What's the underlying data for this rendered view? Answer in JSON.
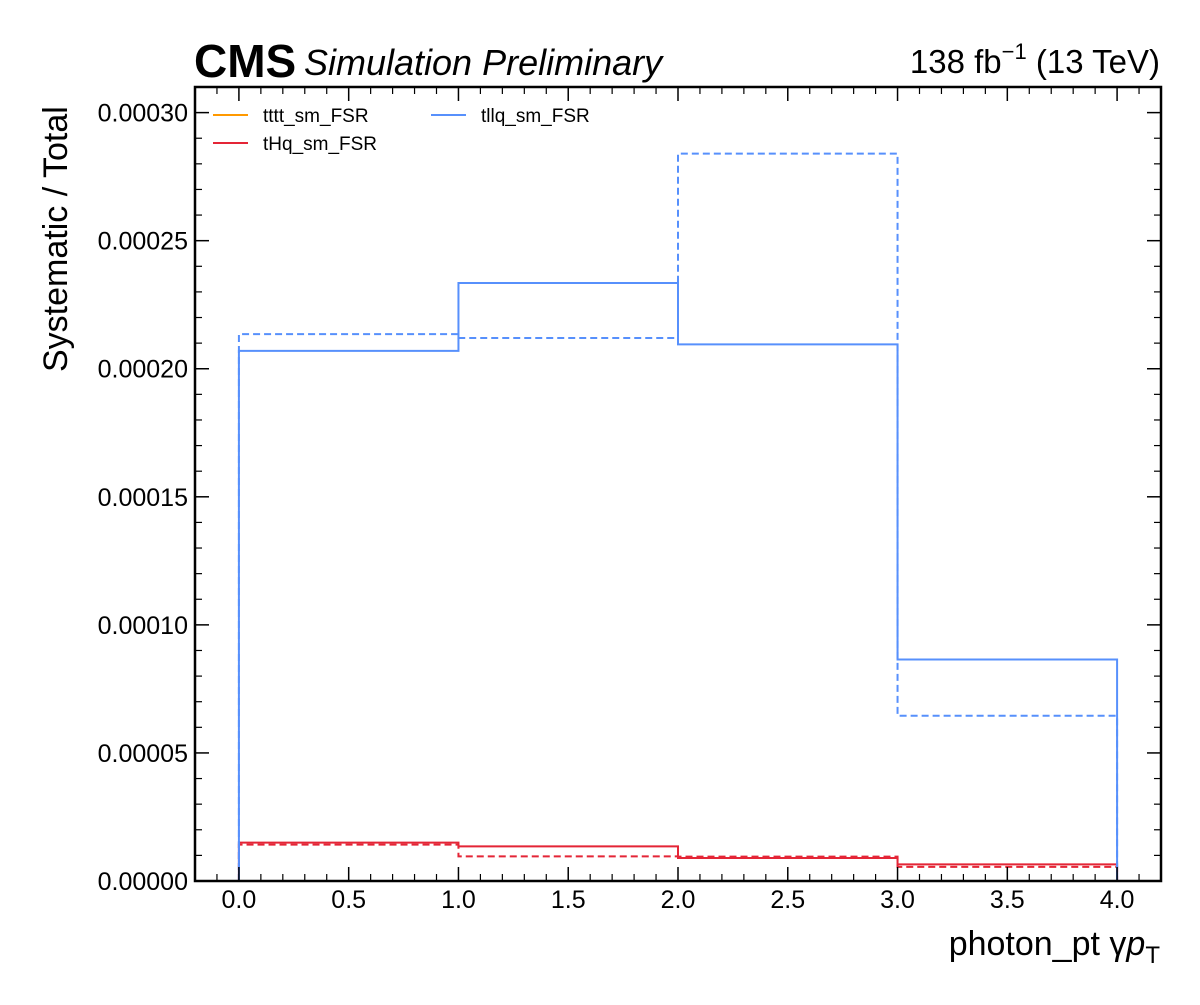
{
  "header": {
    "experiment": "CMS",
    "status": "Simulation Preliminary",
    "lumi_value": "138 fb",
    "lumi_exponent": "−1",
    "lumi_energy": "(13 TeV)"
  },
  "chart_data": {
    "type": "line",
    "style": "step histogram",
    "xlabel_name": "photon_pt",
    "xlabel_symbol": "γ",
    "xlabel_var": "p",
    "xlabel_sub": "T",
    "ylabel": "Systematic / Total",
    "xlim": [
      -0.2,
      4.2
    ],
    "ylim": [
      0,
      0.00031
    ],
    "xticks": [
      "0.0",
      "0.5",
      "1.0",
      "1.5",
      "2.0",
      "2.5",
      "3.0",
      "3.5",
      "4.0"
    ],
    "yticks": [
      "0.00000",
      "0.00005",
      "0.00010",
      "0.00015",
      "0.00020",
      "0.00025",
      "0.00030"
    ],
    "ytick_values": [
      0,
      5e-05,
      0.0001,
      0.00015,
      0.0002,
      0.00025,
      0.0003
    ],
    "bin_edges": [
      0,
      1,
      2,
      3,
      4
    ],
    "legend_position": "top-left",
    "series": [
      {
        "name": "tttt_sm_FSR",
        "color": "#ff9900",
        "up": [
          0,
          0,
          0,
          0
        ],
        "down": [
          0,
          0,
          0,
          0
        ]
      },
      {
        "name": "tHq_sm_FSR",
        "color": "#e42536",
        "up": [
          1.5e-05,
          1.35e-05,
          9e-06,
          6.5e-06
        ],
        "down": [
          1.42e-05,
          9.6e-06,
          9.5e-06,
          5.5e-06
        ]
      },
      {
        "name": "tllq_sm_FSR",
        "color": "#5790fc",
        "up": [
          0.000207,
          0.0002335,
          0.0002095,
          8.65e-05
        ],
        "down": [
          0.0002135,
          0.000212,
          0.000284,
          6.45e-05
        ]
      }
    ]
  }
}
